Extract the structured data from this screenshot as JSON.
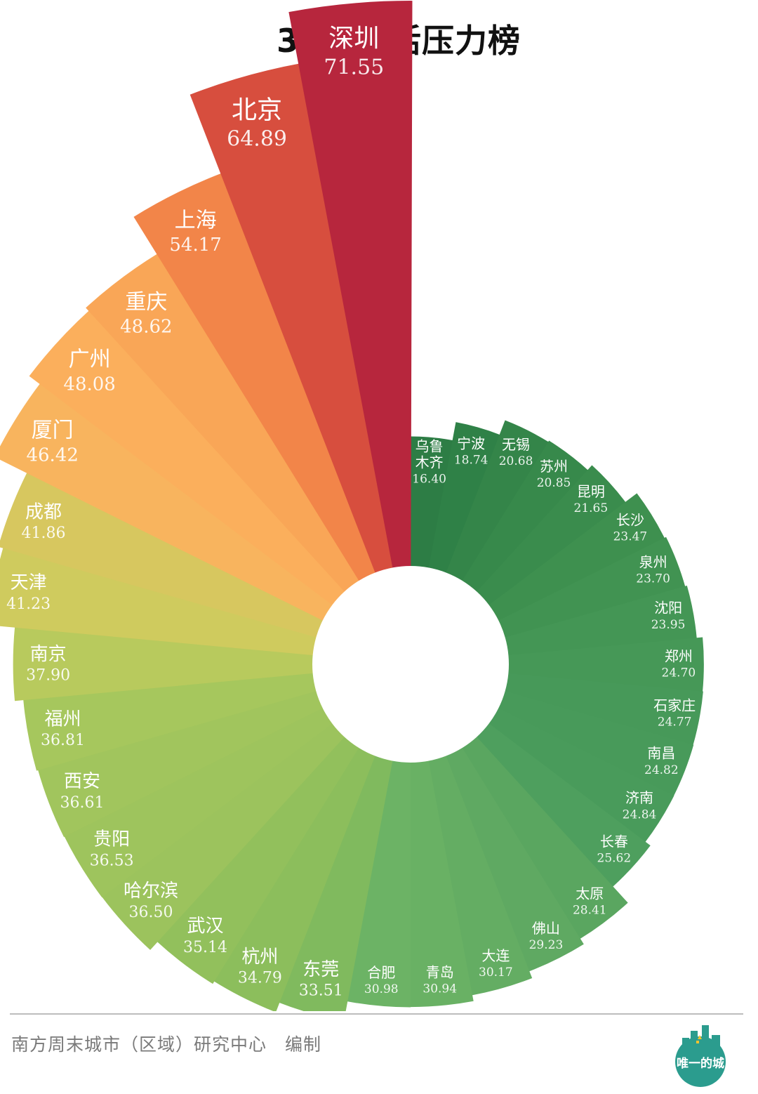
{
  "chart_data": {
    "type": "radial-bar",
    "title": "34城生活压力榜",
    "categories": [
      "乌鲁木齐",
      "宁波",
      "无锡",
      "苏州",
      "昆明",
      "长沙",
      "泉州",
      "沈阳",
      "郑州",
      "石家庄",
      "南昌",
      "济南",
      "长春",
      "太原",
      "佛山",
      "大连",
      "青岛",
      "合肥",
      "东莞",
      "杭州",
      "武汉",
      "哈尔滨",
      "贵阳",
      "西安",
      "福州",
      "南京",
      "天津",
      "成都",
      "厦门",
      "广州",
      "重庆",
      "上海",
      "北京",
      "深圳"
    ],
    "display_names": [
      "乌鲁\n木齐",
      "宁波",
      "无锡",
      "苏州",
      "昆明",
      "长沙",
      "泉州",
      "沈阳",
      "郑州",
      "石家庄",
      "南昌",
      "济南",
      "长春",
      "太原",
      "佛山",
      "大连",
      "青岛",
      "合肥",
      "东莞",
      "杭州",
      "武汉",
      "哈尔滨",
      "贵阳",
      "西安",
      "福州",
      "南京",
      "天津",
      "成都",
      "厦门",
      "广州",
      "重庆",
      "上海",
      "北京",
      "深圳"
    ],
    "values": [
      16.4,
      18.74,
      20.68,
      20.85,
      21.65,
      23.47,
      23.7,
      23.95,
      24.7,
      24.77,
      24.82,
      24.84,
      25.62,
      28.41,
      29.23,
      30.17,
      30.94,
      30.98,
      33.51,
      34.79,
      35.14,
      36.5,
      36.53,
      36.61,
      36.81,
      37.9,
      41.23,
      41.86,
      46.42,
      48.08,
      48.62,
      54.17,
      64.89,
      71.55
    ],
    "value_labels": [
      "16.40",
      "18.74",
      "20.68",
      "20.85",
      "21.65",
      "23.47",
      "23.70",
      "23.95",
      "24.70",
      "24.77",
      "24.82",
      "24.84",
      "25.62",
      "28.41",
      "29.23",
      "30.17",
      "30.94",
      "30.98",
      "33.51",
      "34.79",
      "35.14",
      "36.50",
      "36.53",
      "36.61",
      "36.81",
      "37.90",
      "41.23",
      "41.86",
      "46.42",
      "48.08",
      "48.62",
      "54.17",
      "64.89",
      "71.55"
    ],
    "colors": [
      "#2d7d45",
      "#2f8147",
      "#348549",
      "#37894b",
      "#3a8c4d",
      "#3e904f",
      "#419352",
      "#449655",
      "#469857",
      "#479959",
      "#489a5a",
      "#499b5b",
      "#4e9f5e",
      "#5aa660",
      "#5fa962",
      "#64ad63",
      "#69b164",
      "#6cb365",
      "#80ba5e",
      "#8cbe5c",
      "#92c05c",
      "#9cc35d",
      "#9ec45d",
      "#a1c55d",
      "#a6c75d",
      "#b8ca5d",
      "#cfcb5e",
      "#d7c75f",
      "#f8b45e",
      "#fbaf5c",
      "#f9a657",
      "#f28549",
      "#d74e3e",
      "#b7263d"
    ]
  },
  "source": "南方周末城市（区域）研究中心　编制",
  "logo": {
    "text": "唯一的城",
    "color": "#2b9c8e"
  }
}
